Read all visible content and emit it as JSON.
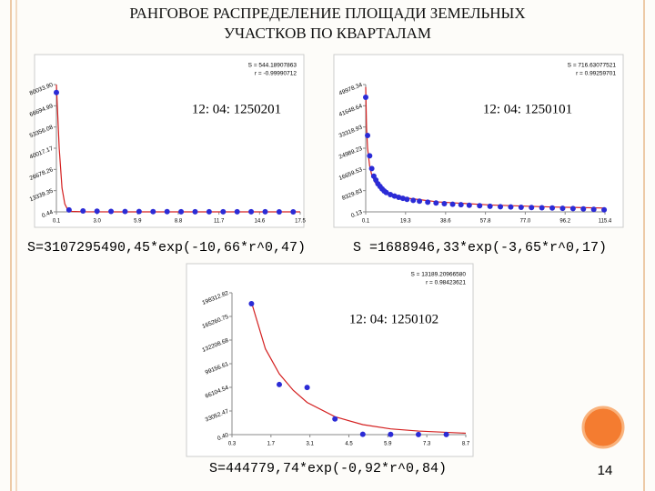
{
  "title": "РАНГОВОЕ РАСПРЕДЕЛЕНИЕ ПЛОЩАДИ ЗЕМЕЛЬНЫХ УЧАСТКОВ ПО КВАРТАЛАМ",
  "page_number": "14",
  "chart_data": [
    {
      "type": "scatter",
      "annotation": "12: 04: 1250201",
      "stat_s": "S = 544.18907863",
      "stat_r": "r = -0.99990712",
      "formula": "S=3107295490,45*exp(-10,66*r^0,47)",
      "xlim": [
        0.1,
        17.5
      ],
      "xticks": [
        0.1,
        {
          "value": 3.0,
          "label": "3.0"
        },
        5.9,
        8.8,
        11.7,
        14.6,
        17.5
      ],
      "ylim": [
        0.44,
        80033.9
      ],
      "yticks": [
        0.44,
        13339.35,
        26678.26,
        40017.17,
        53356.08,
        66694.99,
        {
          "value": 80033.9,
          "label": "80033.90"
        }
      ],
      "points": {
        "color": "#2b2bd6",
        "x": [
          0.1,
          1,
          2,
          3,
          4,
          5,
          6,
          7,
          8,
          9,
          10,
          11,
          12,
          13,
          14,
          15,
          16,
          17
        ],
        "y": [
          75000,
          1200,
          600,
          400,
          300,
          250,
          200,
          150,
          120,
          100,
          90,
          80,
          70,
          60,
          50,
          40,
          30,
          20
        ]
      },
      "fit": {
        "color": "#d42020",
        "x": [
          0.1,
          0.3,
          0.5,
          0.7,
          0.9,
          1.2,
          2,
          5,
          10,
          17.5
        ],
        "y": [
          80000,
          40000,
          15000,
          5000,
          1500,
          300,
          60,
          10,
          2,
          0
        ]
      }
    },
    {
      "type": "scatter",
      "annotation": "12: 04: 1250101",
      "stat_s": "S = 716.63077521",
      "stat_r": "r = 0.99259701",
      "formula": "S =1688946,33*exp(-3,65*r^0,17)",
      "xlim": [
        0.1,
        115.4
      ],
      "xticks": [
        0.1,
        19.3,
        38.6,
        57.8,
        {
          "value": 77.0,
          "label": "77.0"
        },
        96.2,
        115.4
      ],
      "ylim": [
        0.13,
        49978.34
      ],
      "yticks": [
        0.13,
        8329.83,
        16659.53,
        24989.23,
        33318.93,
        41648.64,
        49978.34
      ],
      "points": {
        "color": "#2b2bd6",
        "x": [
          0.1,
          1,
          2,
          3,
          4,
          5,
          6,
          7,
          8,
          9,
          10,
          12,
          14,
          16,
          18,
          20,
          23,
          26,
          30,
          34,
          38,
          42,
          46,
          50,
          55,
          60,
          65,
          70,
          75,
          80,
          85,
          90,
          95,
          100,
          105,
          110,
          115
        ],
        "y": [
          45000,
          30000,
          22000,
          17000,
          14000,
          12500,
          11000,
          10000,
          9000,
          8200,
          7600,
          6800,
          6200,
          5700,
          5300,
          4900,
          4500,
          4200,
          3800,
          3500,
          3200,
          3000,
          2800,
          2600,
          2400,
          2200,
          2000,
          1900,
          1800,
          1700,
          1600,
          1500,
          1400,
          1300,
          1150,
          1000,
          800
        ]
      },
      "fit": {
        "color": "#d42020",
        "x": [
          0.1,
          0.5,
          1,
          2,
          3,
          5,
          8,
          12,
          20,
          35,
          60,
          90,
          115.4
        ],
        "y": [
          49000,
          33000,
          25000,
          18000,
          14500,
          11000,
          8800,
          7200,
          5400,
          3900,
          2700,
          1900,
          1500
        ]
      }
    },
    {
      "type": "scatter",
      "annotation": "12: 04: 1250102",
      "stat_s": "S = 13189.20966580",
      "stat_r": "r = 0.98423621",
      "formula": "S=444779,74*exp(-0,92*r^0,84)",
      "xlim": [
        0.3,
        8.7
      ],
      "xticks": [
        0.3,
        1.7,
        3.1,
        4.5,
        5.9,
        7.3,
        8.7
      ],
      "ylim": [
        0.4,
        198312.82
      ],
      "yticks": [
        {
          "value": 0.4,
          "label": "0.40"
        },
        33052.47,
        66104.54,
        99156.61,
        132208.68,
        165260.75,
        198312.82
      ],
      "points": {
        "color": "#2b2bd6",
        "x": [
          1,
          2,
          3,
          4,
          5,
          6,
          7,
          8
        ],
        "y": [
          183000,
          70000,
          66000,
          22000,
          500,
          300,
          200,
          100
        ]
      },
      "fit": {
        "color": "#d42020",
        "x": [
          1,
          1.5,
          2,
          2.5,
          3,
          4,
          5,
          6,
          7,
          8.7
        ],
        "y": [
          185000,
          120000,
          85000,
          62000,
          45000,
          25000,
          14000,
          8000,
          5000,
          2000
        ]
      }
    }
  ]
}
